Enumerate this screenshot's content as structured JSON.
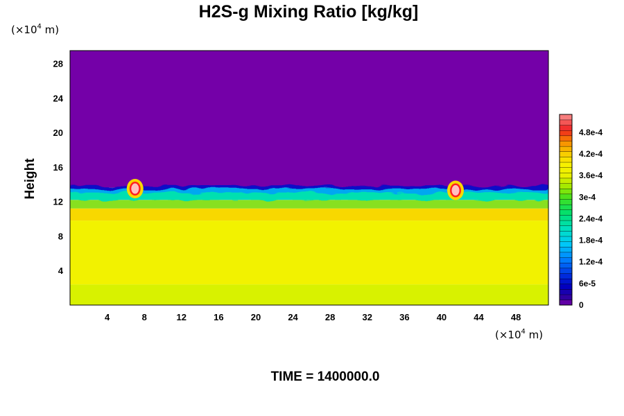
{
  "chart_data": {
    "type": "heatmap",
    "title": "H2S-g Mixing Ratio [kg/kg]",
    "ylabel": "Height",
    "x_unit": {
      "prefix": "(×10",
      "exp": "4",
      "suffix": " m)"
    },
    "y_unit": {
      "prefix": "(×10",
      "exp": "4",
      "suffix": " m)"
    },
    "xlim": [
      0,
      51.5
    ],
    "ylim": [
      0,
      29.5
    ],
    "x_ticks": [
      4,
      8,
      12,
      16,
      20,
      24,
      28,
      32,
      36,
      40,
      44,
      48
    ],
    "y_ticks": [
      4,
      8,
      12,
      16,
      20,
      24,
      28
    ],
    "colorbar": {
      "range": [
        0,
        0.00053
      ],
      "tick_values": [
        0,
        6e-05,
        0.00012,
        0.00018,
        0.00024,
        0.0003,
        0.00036,
        0.00042,
        0.00048
      ],
      "tick_labels": [
        "0",
        "6e-5",
        "1.2e-4",
        "1.8e-4",
        "2.4e-4",
        "3e-4",
        "3.6e-4",
        "4.2e-4",
        "4.8e-4"
      ]
    },
    "layers": [
      {
        "y_range": [
          0,
          2.4
        ],
        "value": 0.00034,
        "color": "#d8f200"
      },
      {
        "y_range": [
          2.4,
          9.8
        ],
        "value": 0.00037,
        "color": "#f2f200"
      },
      {
        "y_range": [
          9.8,
          11.2
        ],
        "value": 0.00039,
        "color": "#f8d800"
      },
      {
        "y_range": [
          11.2,
          12.2
        ],
        "value": 0.00029,
        "color": "#88e020"
      },
      {
        "y_range": [
          12.2,
          13.6
        ],
        "value": 0.00018,
        "color": "#00d8c8"
      },
      {
        "y_range": [
          13.6,
          29.5
        ],
        "value": 0,
        "color": "#7400a8"
      }
    ],
    "hotspots": [
      {
        "x": 7.0,
        "y": 13.5,
        "value": 0.00052
      },
      {
        "x": 41.5,
        "y": 13.3,
        "value": 0.00052
      }
    ]
  },
  "footer": {
    "time_label": "TIME = 1400000.0"
  }
}
